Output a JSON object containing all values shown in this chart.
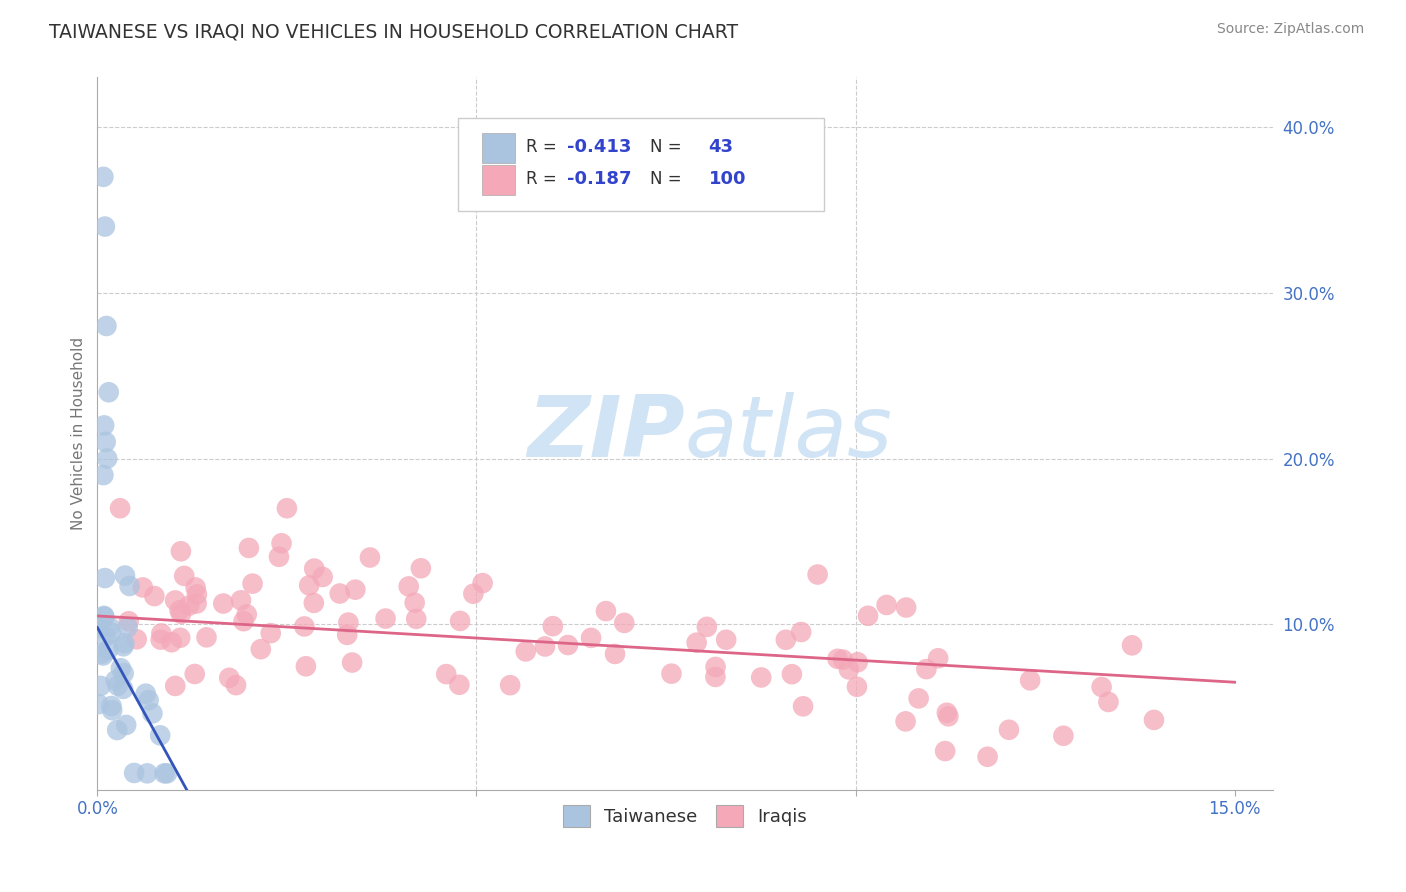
{
  "title": "TAIWANESE VS IRAQI NO VEHICLES IN HOUSEHOLD CORRELATION CHART",
  "source_text": "Source: ZipAtlas.com",
  "ylabel": "No Vehicles in Household",
  "xlim": [
    0.0,
    0.155
  ],
  "ylim": [
    0.0,
    0.43
  ],
  "taiwanese_R": -0.413,
  "taiwanese_N": 43,
  "iraqi_R": -0.187,
  "iraqi_N": 100,
  "taiwanese_color": "#aac4e0",
  "iraqi_color": "#f4a8b8",
  "taiwanese_line_color": "#3355bb",
  "iraqi_line_color": "#dd6688",
  "legend_value_color": "#3344cc",
  "watermark_color": "#d0e4f5",
  "background_color": "#ffffff",
  "grid_color": "#cccccc",
  "title_color": "#333333",
  "axis_label_color": "#4472c4",
  "right_yticks": [
    0.1,
    0.2,
    0.3,
    0.4
  ],
  "right_yticklabels": [
    "10.0%",
    "20.0%",
    "30.0%",
    "40.0%"
  ]
}
